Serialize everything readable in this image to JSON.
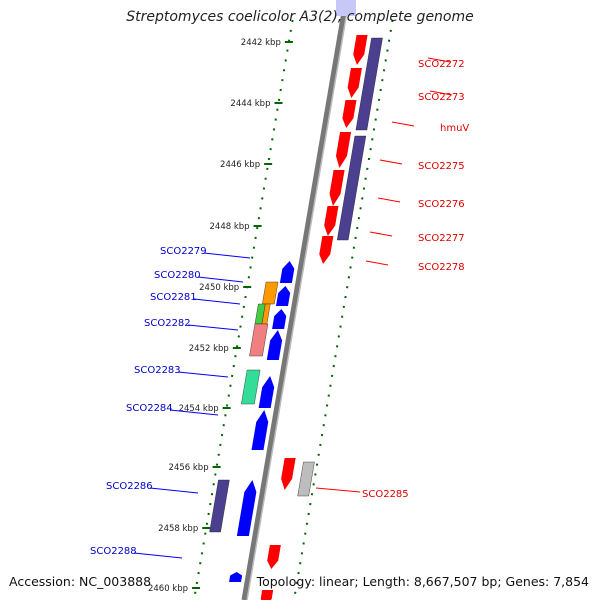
{
  "title": "Streptomyces coelicolor A3(2), complete genome",
  "accession": "Accession: NC_003888",
  "topology": "Topology: linear; Length: 8,667,507 bp; Genes: 7,854",
  "colors": {
    "forward": "#ff0000",
    "reverse": "#0000ff",
    "label_forward": "#dd0000",
    "label_reverse": "#0000cc",
    "ruler": "#006600",
    "backbone": "#8a8a8a",
    "feature_purple": "#4b3f8f"
  },
  "ruler": {
    "unit": "kbp",
    "ticks": [
      "2442 kbp",
      "2444 kbp",
      "2446 kbp",
      "2448 kbp",
      "2450 kbp",
      "2452 kbp",
      "2454 kbp",
      "2456 kbp",
      "2458 kbp",
      "2460 kbp"
    ]
  },
  "forward_genes": [
    {
      "label": "SCO2272",
      "color": "#ff0000"
    },
    {
      "label": "SCO2273",
      "color": "#ff0000"
    },
    {
      "label": "hmuV",
      "color": "#ff0000"
    },
    {
      "label": "SCO2275",
      "color": "#ff0000"
    },
    {
      "label": "SCO2276",
      "color": "#ff0000"
    },
    {
      "label": "SCO2277",
      "color": "#ff0000"
    },
    {
      "label": "SCO2278",
      "color": "#ff0000"
    },
    {
      "label": "SCO2285",
      "color": "#ff0000"
    }
  ],
  "reverse_genes": [
    {
      "label": "SCO2279",
      "color": "#0000ff"
    },
    {
      "label": "SCO2280",
      "color": "#0000ff"
    },
    {
      "label": "SCO2281",
      "color": "#0000ff"
    },
    {
      "label": "SCO2282",
      "color": "#0000ff"
    },
    {
      "label": "SCO2283",
      "color": "#0000ff"
    },
    {
      "label": "SCO2284",
      "color": "#0000ff"
    },
    {
      "label": "SCO2286",
      "color": "#0000ff"
    },
    {
      "label": "SCO2288",
      "color": "#0000ff"
    }
  ]
}
